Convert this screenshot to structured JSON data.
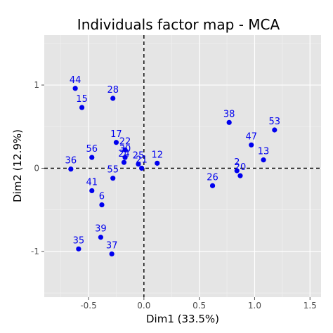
{
  "chart_data": {
    "type": "scatter",
    "title": "Individuals factor map - MCA",
    "xlabel": "Dim1 (33.5%)",
    "ylabel": "Dim2 (12.9%)",
    "xlim": [
      -0.9,
      1.6
    ],
    "ylim": [
      -1.55,
      1.6
    ],
    "x_ticks": [
      -0.5,
      0.0,
      0.5,
      1.0,
      1.5
    ],
    "x_tick_labels": [
      "-0.5",
      "0.0",
      "0.5",
      "1.0",
      "1.5"
    ],
    "y_ticks": [
      -1,
      0,
      1
    ],
    "y_tick_labels": [
      "-1",
      "0",
      "1"
    ],
    "grid": true,
    "reference_lines": [
      0,
      0
    ],
    "point_color": "#0000ee",
    "panel_color": "#e5e5e5",
    "points": [
      {
        "label": "44",
        "x": -0.62,
        "y": 0.96
      },
      {
        "label": "15",
        "x": -0.56,
        "y": 0.73
      },
      {
        "label": "28",
        "x": -0.28,
        "y": 0.84
      },
      {
        "label": "17",
        "x": -0.25,
        "y": 0.31
      },
      {
        "label": "22",
        "x": -0.17,
        "y": 0.22
      },
      {
        "label": "30",
        "x": -0.17,
        "y": 0.13
      },
      {
        "label": "24",
        "x": -0.18,
        "y": 0.07
      },
      {
        "label": "25",
        "x": -0.05,
        "y": 0.05
      },
      {
        "label": "21",
        "x": -0.02,
        "y": 0.0
      },
      {
        "label": "12",
        "x": 0.12,
        "y": 0.06
      },
      {
        "label": "36",
        "x": -0.66,
        "y": -0.01
      },
      {
        "label": "56",
        "x": -0.47,
        "y": 0.13
      },
      {
        "label": "55",
        "x": -0.28,
        "y": -0.12
      },
      {
        "label": "41",
        "x": -0.47,
        "y": -0.27
      },
      {
        "label": "6",
        "x": -0.38,
        "y": -0.44
      },
      {
        "label": "39",
        "x": -0.39,
        "y": -0.83
      },
      {
        "label": "35",
        "x": -0.59,
        "y": -0.97
      },
      {
        "label": "37",
        "x": -0.29,
        "y": -1.03
      },
      {
        "label": "38",
        "x": 0.77,
        "y": 0.55
      },
      {
        "label": "53",
        "x": 1.18,
        "y": 0.46
      },
      {
        "label": "47",
        "x": 0.97,
        "y": 0.28
      },
      {
        "label": "13",
        "x": 1.08,
        "y": 0.1
      },
      {
        "label": "2",
        "x": 0.84,
        "y": -0.03
      },
      {
        "label": "20",
        "x": 0.87,
        "y": -0.09
      },
      {
        "label": "26",
        "x": 0.62,
        "y": -0.21
      }
    ]
  }
}
